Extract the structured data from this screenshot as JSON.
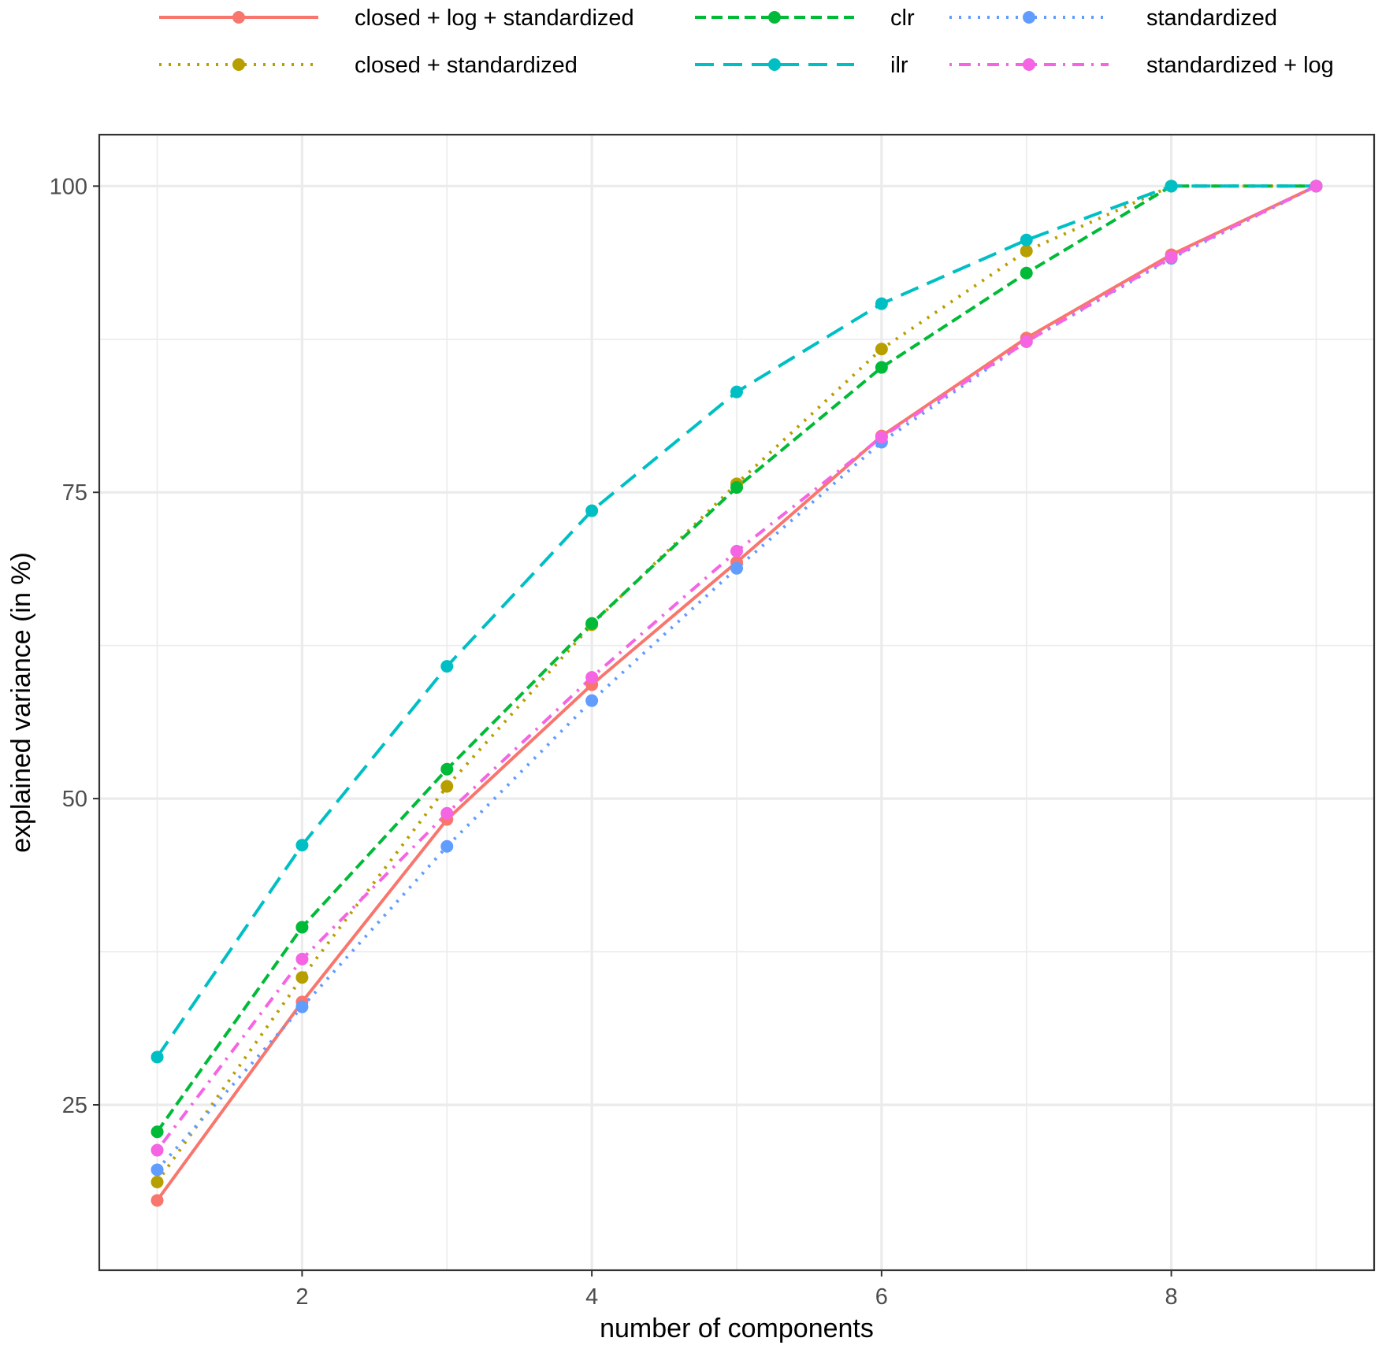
{
  "chart_data": {
    "type": "line",
    "title": "",
    "xlabel": "number of components",
    "ylabel": "explained variance (in %)",
    "xlim": [
      0.6,
      9.4
    ],
    "ylim": [
      11.5,
      104.2
    ],
    "x_ticks": [
      2,
      4,
      6,
      8
    ],
    "y_ticks": [
      25,
      50,
      75,
      100
    ],
    "y_minor_ticks": [
      37.5,
      62.5,
      87.5
    ],
    "x_minor_ticks": [
      1,
      3,
      5,
      7,
      9
    ],
    "grid": true,
    "legend_position": "top",
    "x": [
      1,
      2,
      3,
      4,
      5,
      6,
      7,
      8,
      9
    ],
    "series": [
      {
        "name": "closed + log + standardized",
        "color": "#F8766D",
        "dash": "solid",
        "values": [
          17.2,
          33.4,
          48.3,
          59.3,
          69.3,
          79.6,
          87.6,
          94.4,
          100
        ]
      },
      {
        "name": "closed + standardized",
        "color": "#B79F00",
        "dash": "dotted",
        "values": [
          18.7,
          35.4,
          51.0,
          64.2,
          75.7,
          86.7,
          94.7,
          100,
          100
        ]
      },
      {
        "name": "clr",
        "color": "#00BA38",
        "dash": "dashed",
        "values": [
          22.8,
          39.5,
          52.4,
          64.3,
          75.4,
          85.2,
          92.9,
          100,
          100
        ]
      },
      {
        "name": "ilr",
        "color": "#00BFC4",
        "dash": "longdash",
        "values": [
          28.9,
          46.2,
          60.8,
          73.5,
          83.2,
          90.4,
          95.6,
          100,
          100
        ]
      },
      {
        "name": "standardized",
        "color": "#619CFF",
        "dash": "dotted",
        "values": [
          19.7,
          33.0,
          46.1,
          58.0,
          68.8,
          79.1,
          87.3,
          94.1,
          100
        ]
      },
      {
        "name": "standardized + log",
        "color": "#F564E3",
        "dash": "dotdash",
        "values": [
          21.3,
          36.9,
          48.8,
          59.9,
          70.2,
          79.5,
          87.3,
          94.2,
          100
        ]
      }
    ]
  }
}
